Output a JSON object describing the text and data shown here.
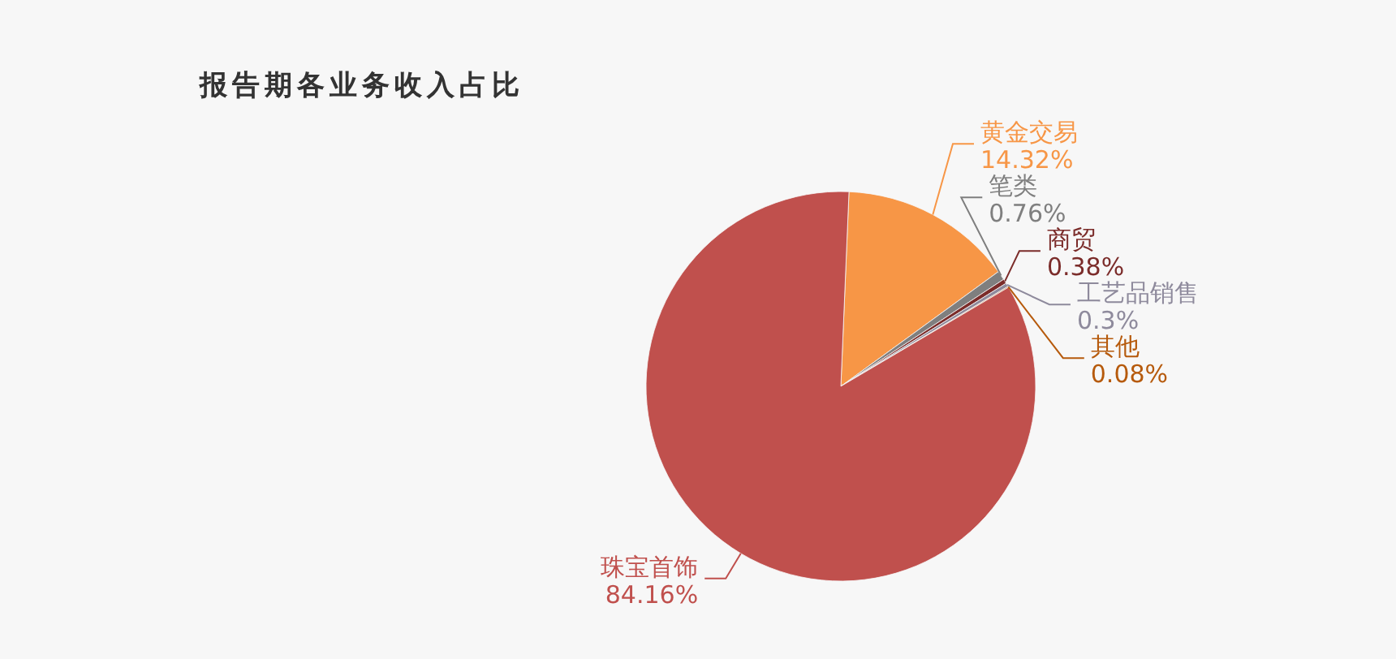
{
  "chart_data": {
    "type": "pie",
    "title": "报告期各业务收入占比",
    "categories": [
      "黄金交易",
      "笔类",
      "商贸",
      "工艺品销售",
      "其他",
      "珠宝首饰"
    ],
    "values": [
      14.32,
      0.76,
      0.38,
      0.3,
      0.08,
      84.16
    ],
    "value_labels": [
      "14.32%",
      "0.76%",
      "0.38%",
      "0.3%",
      "0.08%",
      "84.16%"
    ],
    "colors": [
      "#f79646",
      "#7f7f7f",
      "#7b2c2a",
      "#8e8a9c",
      "#b65a0c",
      "#c0504d"
    ]
  }
}
